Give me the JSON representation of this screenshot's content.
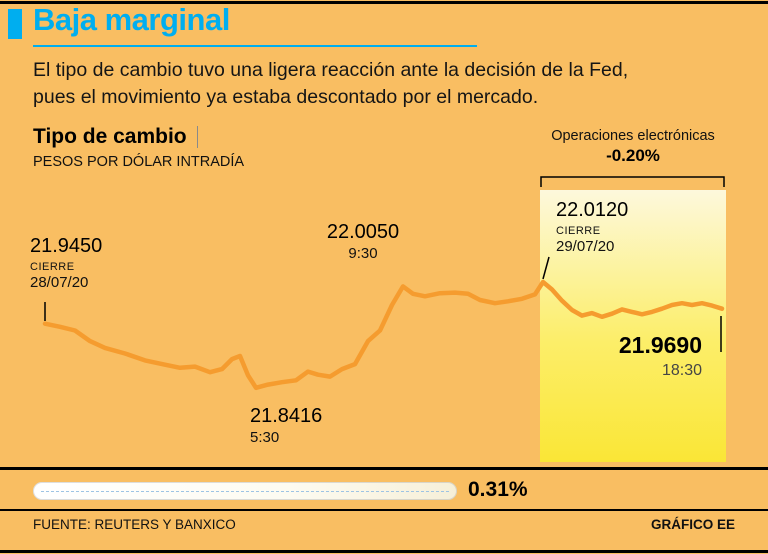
{
  "page": {
    "title": "Baja marginal",
    "intro_line1": "El tipo de cambio tuvo una ligera reacción ante la decisión de la Fed,",
    "intro_line2": "pues el movimiento ya estaba descontado por el mercado.",
    "footer_source": "FUENTE: REUTERS Y BANXICO",
    "footer_credit": "GRÁFICO EE",
    "bg_color": "#F9BE62",
    "accent_cyan": "#00AEEF",
    "line_orange": "#F59C2F",
    "highlight_yellow": "#FAE636"
  },
  "chart_header": {
    "title": "Tipo de cambio",
    "subtitle": "PESOS POR DÓLAR INTRADÍA",
    "electronic_label": "Operaciones electrónicas",
    "electronic_change": "-0.20%"
  },
  "annotations": {
    "prev_close": {
      "value": "21.9450",
      "label": "CIERRE",
      "date": "28/07/20"
    },
    "high": {
      "value": "22.0050",
      "time": "9:30"
    },
    "low": {
      "value": "21.8416",
      "time": "5:30"
    },
    "close": {
      "value": "22.0120",
      "label": "CIERRE",
      "date": "29/07/20"
    },
    "last": {
      "value": "21.9690",
      "time": "18:30"
    }
  },
  "range_bar": {
    "value": "0.31%"
  },
  "chart_data": {
    "type": "line",
    "title": "Tipo de cambio",
    "ylabel": "Pesos por dólar intradía",
    "legend": "off",
    "grid": "off",
    "value_min": 21.8416,
    "value_max": 22.012,
    "key_values": {
      "cierre_28_07_20": 21.945,
      "minimo_5_30": 21.8416,
      "maximo_9_30": 22.005,
      "cierre_29_07_20": 22.012,
      "ultimo_18_30_electronico": 21.969,
      "variacion_operaciones_electronicas_pct": -0.2,
      "rango_pct": 0.31
    },
    "points": [
      [
        45,
        21.945
      ],
      [
        60,
        21.94
      ],
      [
        75,
        21.934
      ],
      [
        90,
        21.917
      ],
      [
        105,
        21.906
      ],
      [
        125,
        21.897
      ],
      [
        145,
        21.886
      ],
      [
        165,
        21.879
      ],
      [
        180,
        21.874
      ],
      [
        195,
        21.876
      ],
      [
        210,
        21.867
      ],
      [
        222,
        21.872
      ],
      [
        232,
        21.888
      ],
      [
        240,
        21.893
      ],
      [
        248,
        21.862
      ],
      [
        256,
        21.842
      ],
      [
        268,
        21.847
      ],
      [
        282,
        21.851
      ],
      [
        296,
        21.854
      ],
      [
        308,
        21.868
      ],
      [
        318,
        21.863
      ],
      [
        330,
        21.86
      ],
      [
        342,
        21.872
      ],
      [
        355,
        21.88
      ],
      [
        368,
        21.917
      ],
      [
        380,
        21.934
      ],
      [
        392,
        21.975
      ],
      [
        403,
        22.005
      ],
      [
        413,
        21.993
      ],
      [
        425,
        21.989
      ],
      [
        440,
        21.994
      ],
      [
        455,
        21.995
      ],
      [
        468,
        21.993
      ],
      [
        480,
        21.983
      ],
      [
        495,
        21.978
      ],
      [
        508,
        21.981
      ],
      [
        522,
        21.985
      ],
      [
        535,
        21.992
      ],
      [
        543,
        22.012
      ],
      [
        552,
        22.0
      ],
      [
        562,
        21.982
      ],
      [
        572,
        21.967
      ],
      [
        582,
        21.958
      ],
      [
        592,
        21.962
      ],
      [
        602,
        21.956
      ],
      [
        612,
        21.961
      ],
      [
        622,
        21.968
      ],
      [
        632,
        21.964
      ],
      [
        642,
        21.96
      ],
      [
        652,
        21.964
      ],
      [
        662,
        21.969
      ],
      [
        672,
        21.975
      ],
      [
        682,
        21.978
      ],
      [
        692,
        21.975
      ],
      [
        702,
        21.978
      ],
      [
        712,
        21.974
      ],
      [
        722,
        21.969
      ]
    ]
  }
}
